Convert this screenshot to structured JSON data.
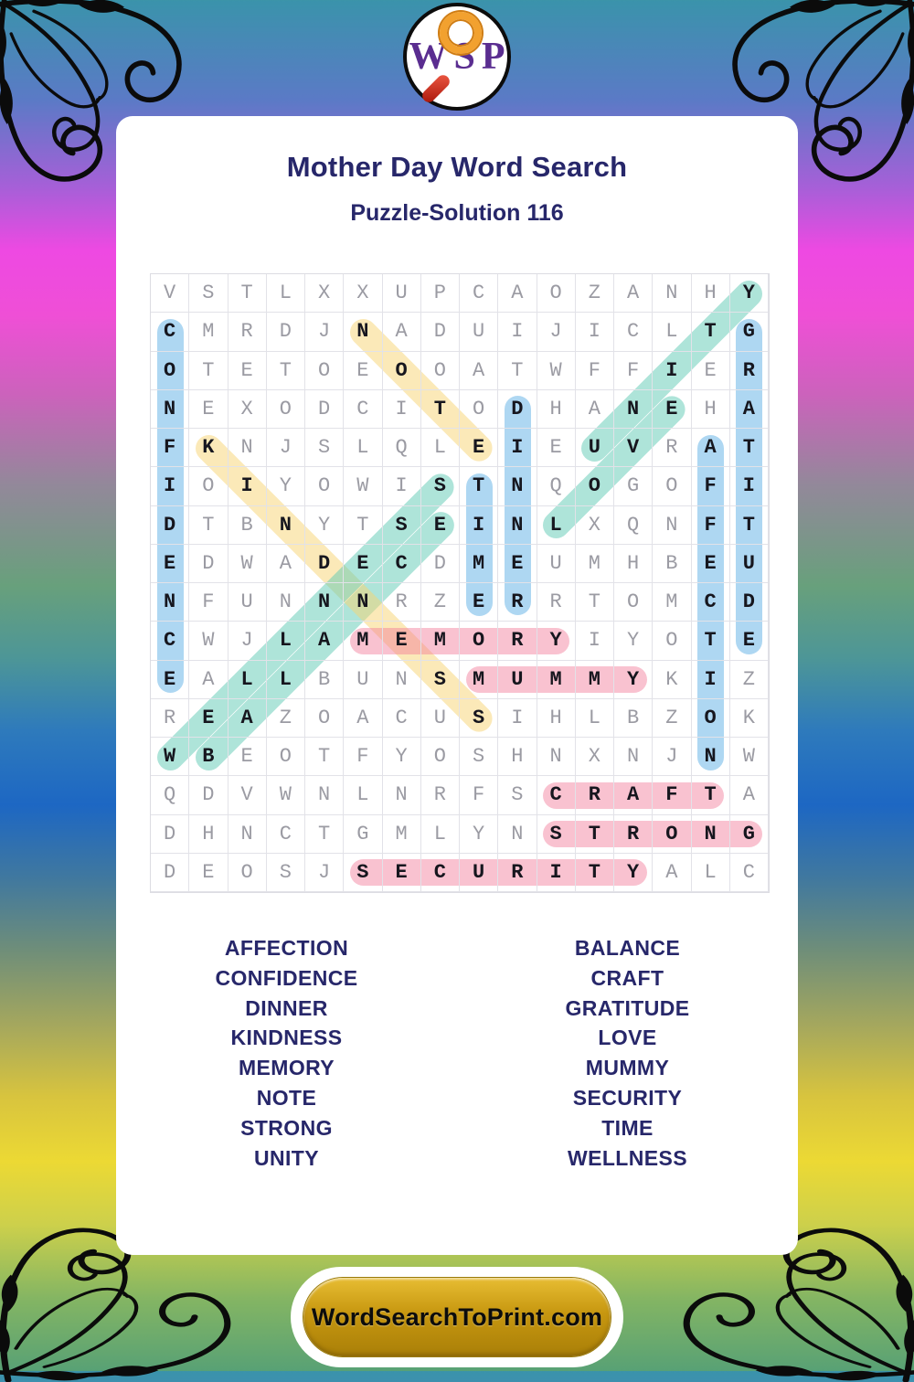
{
  "logo": {
    "letters": [
      "W",
      "S",
      "P"
    ],
    "icon": "magnifier"
  },
  "header": {
    "title": "Mother Day Word Search",
    "subtitle": "Puzzle-Solution 116"
  },
  "puzzle": {
    "rows": [
      "VSTLXXUPCAOZANHY",
      "CMRDJNADUIJICLTG",
      "OTETOEOOATWFFIER",
      "NEXODCITODHANEHA",
      "FKNJSLQLEIEUVRAT",
      "IOIYOWISTNQOGOFI",
      "DTBNYTSEINLXQNFT",
      "EDWADECDMEUMHBEU",
      "NFUNNNRZERRTOMCD",
      "CWJLAMEMORYIYOTE",
      "EALLBUNSMUMMYKIZ",
      "REAZOACUSIHLBZOK",
      "WBEOTFYOSHNXNJNW",
      "QDVWNLNRFSCRAFTA",
      "DHNCTGMLYNSTRONG",
      "DEOSJSECURITYALC"
    ],
    "words": [
      {
        "word": "AFFECTION",
        "row": 5,
        "col": 15,
        "dir": "down",
        "color": "blue"
      },
      {
        "word": "BALANCE",
        "row": 13,
        "col": 2,
        "dir": "up-right",
        "color": "teal"
      },
      {
        "word": "CONFIDENCE",
        "row": 2,
        "col": 1,
        "dir": "down",
        "color": "blue"
      },
      {
        "word": "CRAFT",
        "row": 14,
        "col": 11,
        "dir": "right",
        "color": "pink"
      },
      {
        "word": "DINNER",
        "row": 4,
        "col": 10,
        "dir": "down",
        "color": "blue"
      },
      {
        "word": "GRATITUDE",
        "row": 2,
        "col": 16,
        "dir": "down",
        "color": "blue"
      },
      {
        "word": "KINDNESS",
        "row": 5,
        "col": 2,
        "dir": "down-right",
        "color": "yellow"
      },
      {
        "word": "LOVE",
        "row": 7,
        "col": 11,
        "dir": "up-right",
        "color": "teal"
      },
      {
        "word": "MEMORY",
        "row": 10,
        "col": 6,
        "dir": "right",
        "color": "pink"
      },
      {
        "word": "MUMMY",
        "row": 11,
        "col": 9,
        "dir": "right",
        "color": "pink"
      },
      {
        "word": "NOTE",
        "row": 2,
        "col": 6,
        "dir": "down-right",
        "color": "yellow"
      },
      {
        "word": "SECURITY",
        "row": 16,
        "col": 6,
        "dir": "right",
        "color": "pink"
      },
      {
        "word": "STRONG",
        "row": 15,
        "col": 11,
        "dir": "right",
        "color": "pink"
      },
      {
        "word": "TIME",
        "row": 6,
        "col": 9,
        "dir": "down",
        "color": "blue"
      },
      {
        "word": "UNITY",
        "row": 5,
        "col": 12,
        "dir": "up-right",
        "color": "teal"
      },
      {
        "word": "WELLNESS",
        "row": 13,
        "col": 1,
        "dir": "up-right",
        "color": "teal"
      }
    ],
    "highlight_colors": {
      "pink": "rgba(242,119,150,0.45)",
      "blue": "rgba(93,175,229,0.5)",
      "teal": "rgba(93,201,179,0.5)",
      "yellow": "rgba(247,211,113,0.5)"
    }
  },
  "word_list": {
    "left": [
      "AFFECTION",
      "CONFIDENCE",
      "DINNER",
      "KINDNESS",
      "MEMORY",
      "NOTE",
      "STRONG",
      "UNITY"
    ],
    "right": [
      "BALANCE",
      "CRAFT",
      "GRATITUDE",
      "LOVE",
      "MUMMY",
      "SECURITY",
      "TIME",
      "WELLNESS"
    ]
  },
  "footer": {
    "button_label": "WordSearchToPrint.com"
  },
  "colors": {
    "title_navy": "#27276a",
    "logo_purple": "#5a2d90",
    "button_gold": "#c79710"
  }
}
